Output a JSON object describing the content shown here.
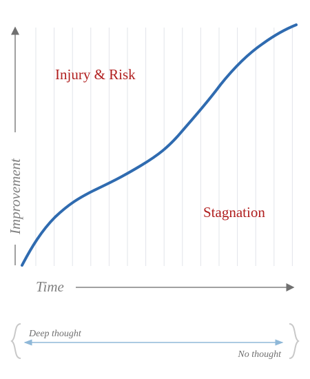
{
  "axes": {
    "y_label": "Improvement",
    "x_label": "Time"
  },
  "zones": {
    "upper": "Injury & Risk",
    "lower": "Stagnation"
  },
  "scale": {
    "left": "Deep thought",
    "right": "No thought"
  }
}
